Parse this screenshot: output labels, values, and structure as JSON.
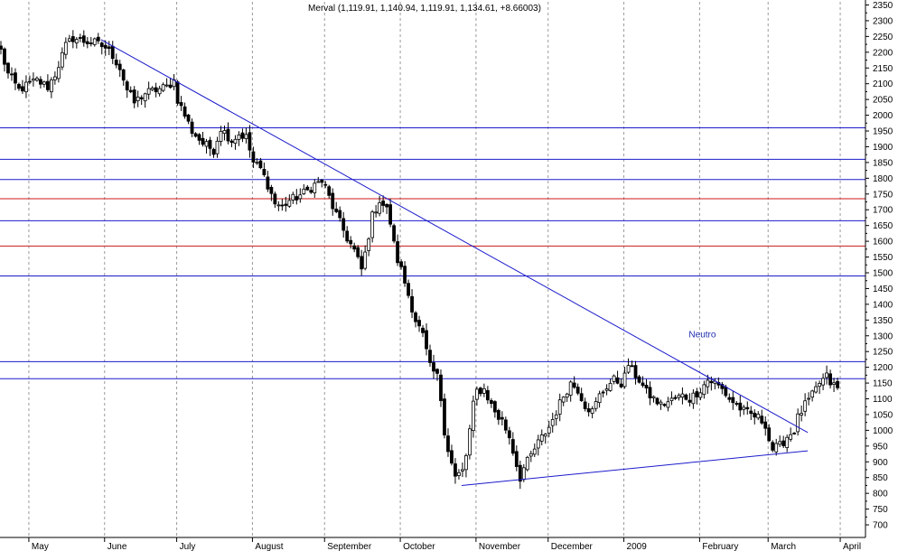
{
  "chart_data": {
    "type": "candlestick",
    "title": "Merval (1,119.91, 1,140.94, 1,119.91, 1,134.61, +8.66003)",
    "ylim": [
      660,
      2360
    ],
    "y_ticks": [
      700,
      750,
      800,
      850,
      900,
      950,
      1000,
      1050,
      1100,
      1150,
      1200,
      1250,
      1300,
      1350,
      1400,
      1450,
      1500,
      1550,
      1600,
      1650,
      1700,
      1750,
      1800,
      1850,
      1900,
      1950,
      2000,
      2050,
      2100,
      2150,
      2200,
      2250,
      2300,
      2350
    ],
    "x_range": [
      0,
      232
    ],
    "x_ticks": [
      {
        "label": "May",
        "x": 8
      },
      {
        "label": "June",
        "x": 29
      },
      {
        "label": "July",
        "x": 49
      },
      {
        "label": "August",
        "x": 70
      },
      {
        "label": "September",
        "x": 90
      },
      {
        "label": "October",
        "x": 111
      },
      {
        "label": "November",
        "x": 132
      },
      {
        "label": "December",
        "x": 152
      },
      {
        "label": "2009",
        "x": 173
      },
      {
        "label": "February",
        "x": 194
      },
      {
        "label": "March",
        "x": 213
      },
      {
        "label": "April",
        "x": 233
      }
    ],
    "grid": "vertical dotted at month boundaries",
    "horizontal_levels": [
      {
        "value": 1960,
        "color": "#1a1acc"
      },
      {
        "value": 1860,
        "color": "#1a1acc"
      },
      {
        "value": 1796,
        "color": "#1a1acc"
      },
      {
        "value": 1735,
        "color": "#cc1a1a"
      },
      {
        "value": 1665,
        "color": "#1a1acc"
      },
      {
        "value": 1585,
        "color": "#cc1a1a"
      },
      {
        "value": 1490,
        "color": "#1a1acc"
      },
      {
        "value": 1218,
        "color": "#1a1acc"
      },
      {
        "value": 1164,
        "color": "#1a1acc"
      }
    ],
    "trendlines": [
      {
        "x1": 28,
        "y1": 2240,
        "x2": 224,
        "y2": 993,
        "color": "#1a1acc"
      },
      {
        "x1": 128,
        "y1": 825,
        "x2": 224,
        "y2": 935,
        "color": "#1a1acc"
      }
    ],
    "annotations": [
      {
        "text": "Neutro",
        "x": 191,
        "y": 1295
      }
    ],
    "anchors": [
      [
        0,
        2205
      ],
      [
        2,
        2130
      ],
      [
        5,
        2080
      ],
      [
        8,
        2100
      ],
      [
        10,
        2110
      ],
      [
        13,
        2090
      ],
      [
        15,
        2130
      ],
      [
        18,
        2220
      ],
      [
        20,
        2245
      ],
      [
        23,
        2235
      ],
      [
        26,
        2230
      ],
      [
        29,
        2215
      ],
      [
        31,
        2190
      ],
      [
        33,
        2150
      ],
      [
        35,
        2080
      ],
      [
        37,
        2040
      ],
      [
        40,
        2070
      ],
      [
        43,
        2080
      ],
      [
        46,
        2090
      ],
      [
        48,
        2110
      ],
      [
        49,
        2050
      ],
      [
        51,
        2000
      ],
      [
        53,
        1950
      ],
      [
        56,
        1910
      ],
      [
        59,
        1890
      ],
      [
        61,
        1960
      ],
      [
        64,
        1920
      ],
      [
        66,
        1940
      ],
      [
        68,
        1930
      ],
      [
        70,
        1850
      ],
      [
        72,
        1830
      ],
      [
        74,
        1780
      ],
      [
        76,
        1720
      ],
      [
        78,
        1710
      ],
      [
        80,
        1730
      ],
      [
        82,
        1740
      ],
      [
        85,
        1760
      ],
      [
        87,
        1780
      ],
      [
        89,
        1790
      ],
      [
        90,
        1770
      ],
      [
        92,
        1710
      ],
      [
        94,
        1660
      ],
      [
        96,
        1610
      ],
      [
        98,
        1570
      ],
      [
        100,
        1510
      ],
      [
        101,
        1560
      ],
      [
        103,
        1680
      ],
      [
        105,
        1730
      ],
      [
        107,
        1700
      ],
      [
        108,
        1660
      ],
      [
        109,
        1590
      ],
      [
        110,
        1540
      ],
      [
        111,
        1510
      ],
      [
        113,
        1430
      ],
      [
        115,
        1350
      ],
      [
        117,
        1300
      ],
      [
        119,
        1200
      ],
      [
        121,
        1170
      ],
      [
        122,
        1100
      ],
      [
        123,
        1000
      ],
      [
        124,
        940
      ],
      [
        126,
        850
      ],
      [
        128,
        870
      ],
      [
        129,
        920
      ],
      [
        130,
        1000
      ],
      [
        131,
        1080
      ],
      [
        132,
        1125
      ],
      [
        134,
        1130
      ],
      [
        136,
        1080
      ],
      [
        138,
        1040
      ],
      [
        139,
        1030
      ],
      [
        141,
        980
      ],
      [
        143,
        890
      ],
      [
        144,
        850
      ],
      [
        145,
        880
      ],
      [
        147,
        920
      ],
      [
        149,
        960
      ],
      [
        152,
        1010
      ],
      [
        154,
        1060
      ],
      [
        156,
        1110
      ],
      [
        158,
        1150
      ],
      [
        160,
        1130
      ],
      [
        162,
        1080
      ],
      [
        164,
        1060
      ],
      [
        166,
        1110
      ],
      [
        168,
        1140
      ],
      [
        170,
        1160
      ],
      [
        172,
        1150
      ],
      [
        173,
        1170
      ],
      [
        174,
        1210
      ],
      [
        175,
        1190
      ],
      [
        177,
        1160
      ],
      [
        179,
        1120
      ],
      [
        181,
        1100
      ],
      [
        183,
        1080
      ],
      [
        185,
        1090
      ],
      [
        187,
        1100
      ],
      [
        189,
        1110
      ],
      [
        191,
        1100
      ],
      [
        193,
        1120
      ],
      [
        194,
        1130
      ],
      [
        196,
        1160
      ],
      [
        198,
        1150
      ],
      [
        200,
        1130
      ],
      [
        202,
        1100
      ],
      [
        204,
        1080
      ],
      [
        206,
        1060
      ],
      [
        208,
        1050
      ],
      [
        210,
        1040
      ],
      [
        212,
        1020
      ],
      [
        213,
        970
      ],
      [
        214,
        940
      ],
      [
        216,
        950
      ],
      [
        218,
        980
      ],
      [
        220,
        1000
      ],
      [
        221,
        1040
      ],
      [
        223,
        1080
      ],
      [
        225,
        1110
      ],
      [
        227,
        1150
      ],
      [
        229,
        1170
      ],
      [
        230,
        1150
      ],
      [
        232,
        1135
      ]
    ]
  }
}
